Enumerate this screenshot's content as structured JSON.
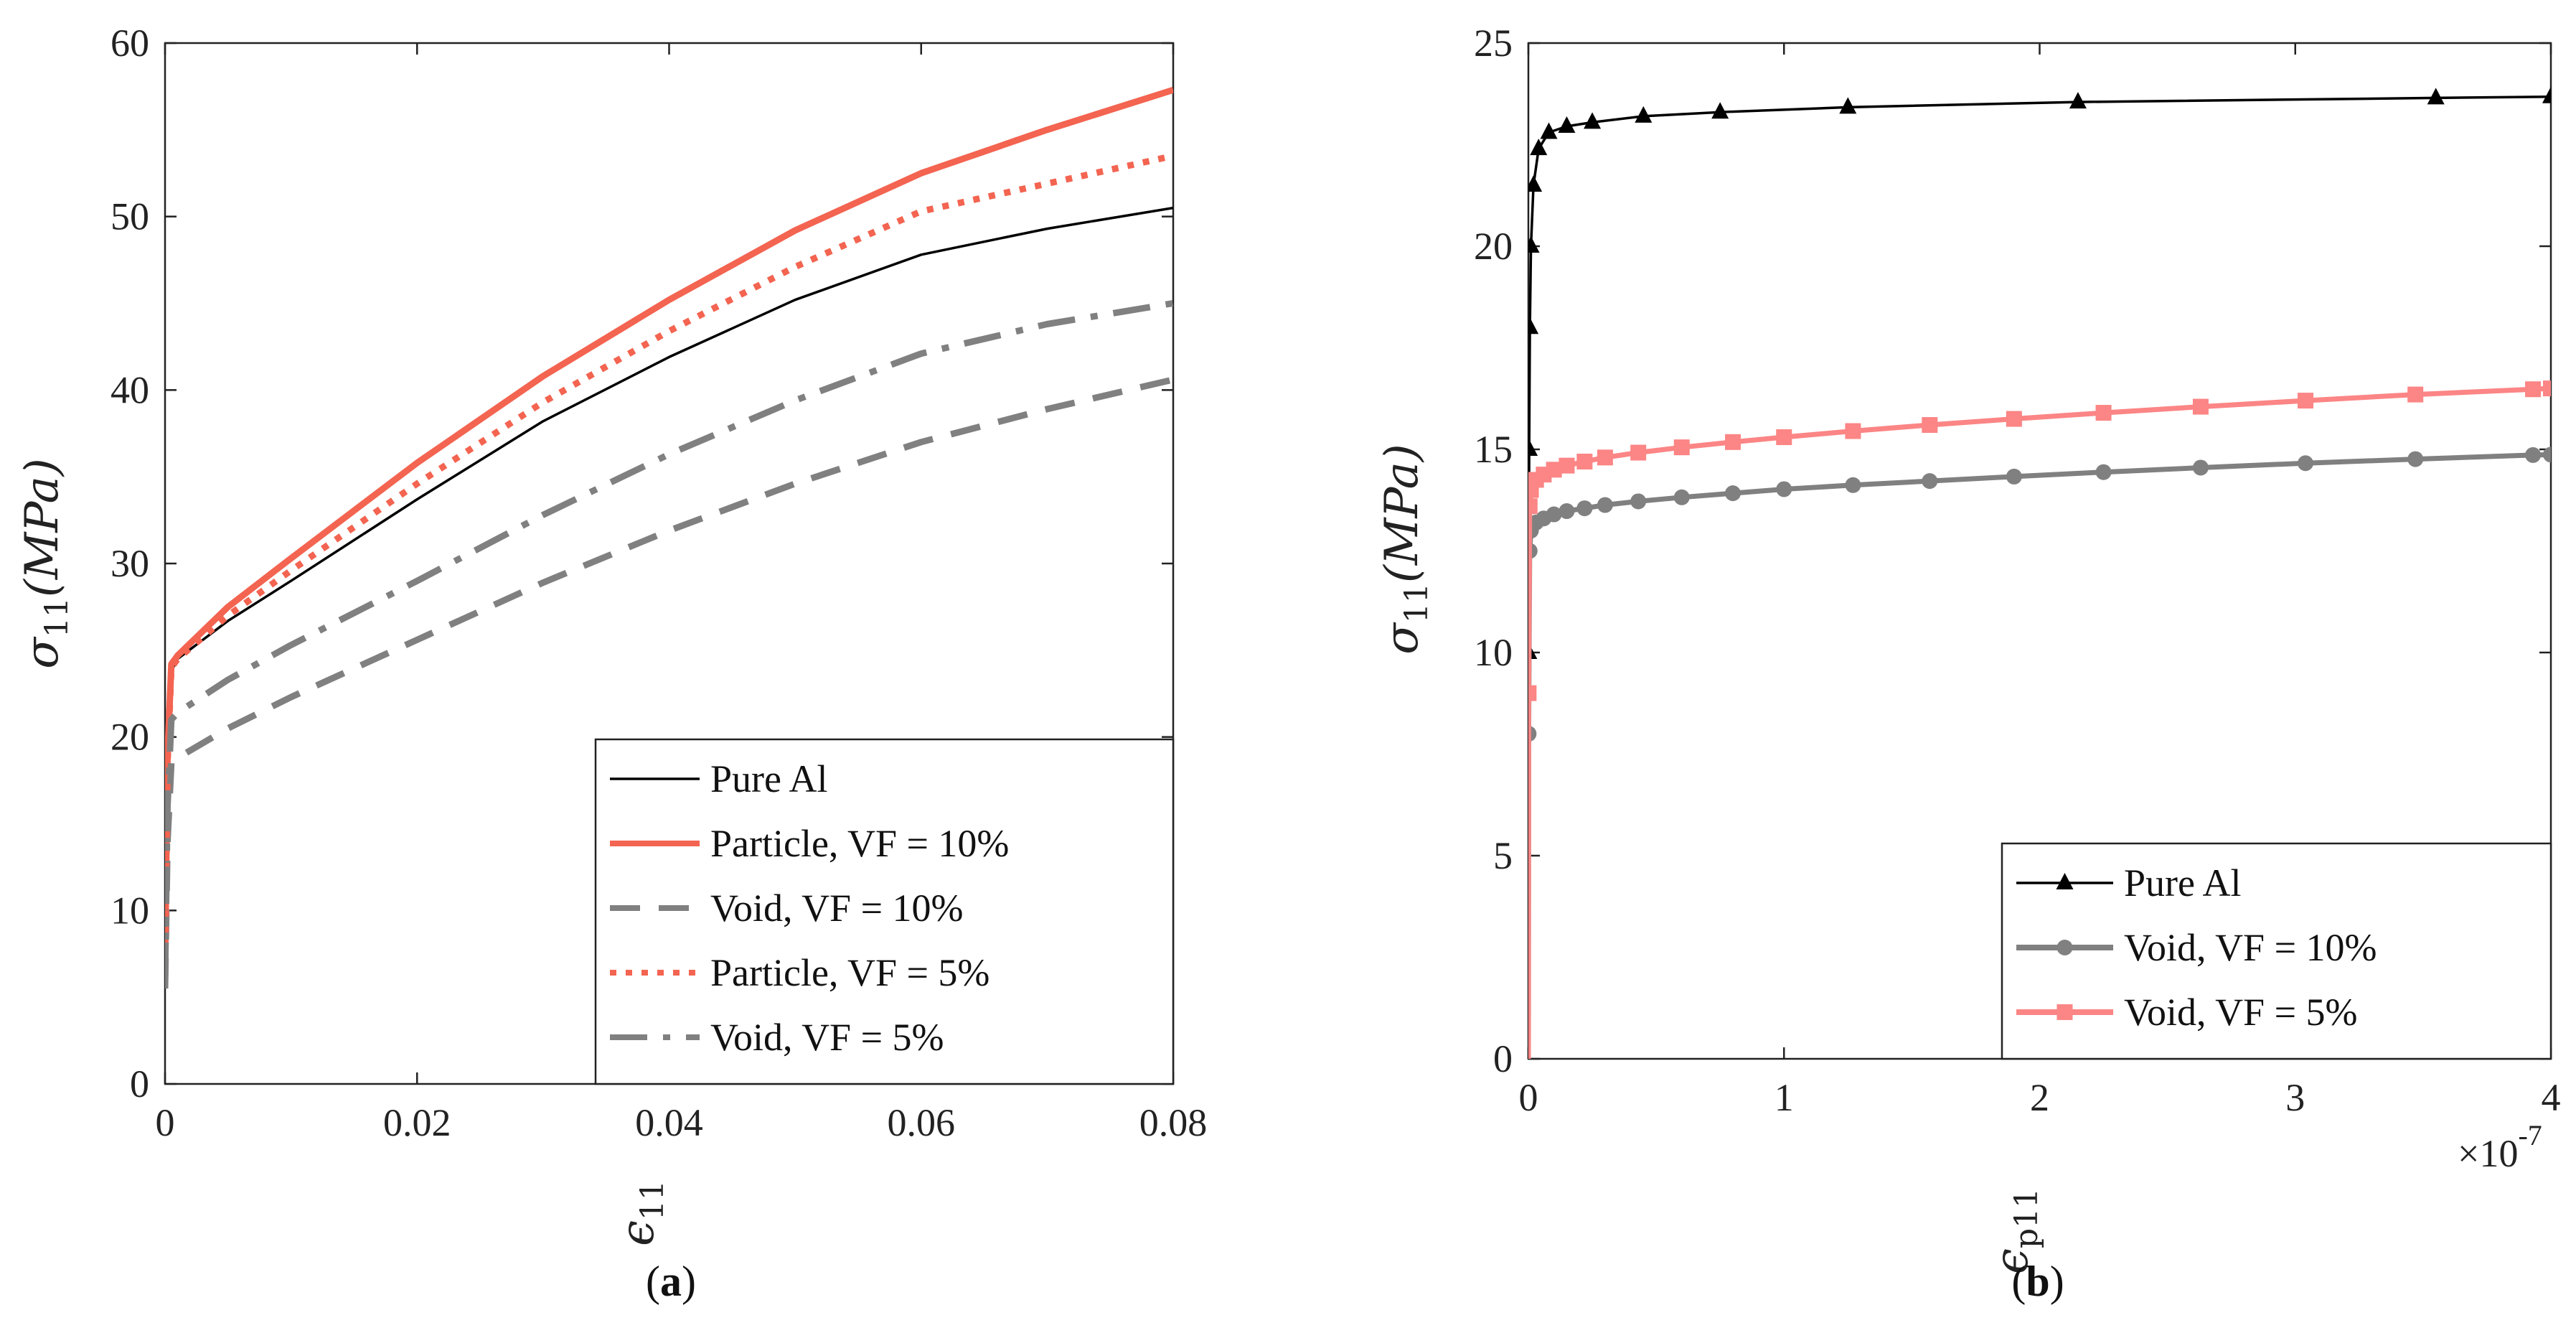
{
  "chart_data": [
    {
      "type": "line",
      "panel": "a",
      "caption": "(a)",
      "xlabel": "ϵ11",
      "ylabel": "σ11(MPa)",
      "xlim": [
        0,
        0.08
      ],
      "ylim": [
        0,
        60
      ],
      "xticks": [
        "0",
        "0.02",
        "0.04",
        "0.06",
        "0.08"
      ],
      "yticks": [
        "0",
        "10",
        "20",
        "30",
        "40",
        "50",
        "60"
      ],
      "legend_position": "bottom-right",
      "series": [
        {
          "name": "Pure Al",
          "color": "#000000",
          "style": "solid",
          "x": [
            0,
            0.0002,
            0.0005,
            0.001,
            0.005,
            0.01,
            0.02,
            0.03,
            0.04,
            0.05,
            0.06,
            0.07,
            0.08
          ],
          "y": [
            5.5,
            18,
            23.8,
            24.5,
            26.7,
            29,
            33.7,
            38.2,
            41.9,
            45.2,
            47.8,
            49.3,
            50.5
          ]
        },
        {
          "name": "Particle, VF = 10%",
          "color": "#f36451",
          "style": "solid",
          "x": [
            0,
            0.0002,
            0.0005,
            0.001,
            0.005,
            0.01,
            0.02,
            0.03,
            0.04,
            0.05,
            0.06,
            0.07,
            0.08
          ],
          "y": [
            6.5,
            19,
            24.2,
            24.7,
            27.5,
            30.3,
            35.8,
            40.8,
            45.2,
            49.2,
            52.5,
            55,
            57.3
          ]
        },
        {
          "name": "Void,     VF = 10%",
          "color": "#808080",
          "style": "dashed",
          "x": [
            0,
            0.0002,
            0.0005,
            0.001,
            0.005,
            0.01,
            0.02,
            0.03,
            0.04,
            0.05,
            0.06,
            0.07,
            0.08
          ],
          "y": [
            5.5,
            14,
            18.5,
            18.8,
            20.5,
            22.3,
            25.6,
            28.9,
            31.9,
            34.6,
            37,
            38.9,
            40.6
          ]
        },
        {
          "name": "Particle, VF = 5%",
          "color": "#f36451",
          "style": "dotted",
          "x": [
            0,
            0.0002,
            0.0005,
            0.001,
            0.005,
            0.01,
            0.02,
            0.03,
            0.04,
            0.05,
            0.06,
            0.07,
            0.08
          ],
          "y": [
            6,
            18.5,
            24,
            24.5,
            27,
            29.6,
            34.6,
            39.3,
            43.4,
            47.1,
            50.3,
            51.9,
            53.5
          ]
        },
        {
          "name": "Void,     VF = 5%",
          "color": "#808080",
          "style": "dashdot",
          "x": [
            0,
            0.0002,
            0.0005,
            0.001,
            0.005,
            0.01,
            0.02,
            0.03,
            0.04,
            0.05,
            0.06,
            0.07,
            0.08
          ],
          "y": [
            6,
            16,
            21,
            21.4,
            23.3,
            25.3,
            29,
            32.8,
            36.3,
            39.4,
            42.1,
            43.8,
            45
          ]
        }
      ]
    },
    {
      "type": "line",
      "panel": "b",
      "caption": "(b)",
      "xlabel": "ϵp11",
      "ylabel": "σ11(MPa)",
      "xlim": [
        0,
        4
      ],
      "ylim": [
        0,
        25
      ],
      "xticks": [
        "0",
        "1",
        "2",
        "3",
        "4"
      ],
      "yticks": [
        "0",
        "5",
        "10",
        "15",
        "20",
        "25"
      ],
      "x_multiplier": "×10",
      "x_multiplier_exp": "-7",
      "legend_position": "bottom-right",
      "series": [
        {
          "name": "Pure Al",
          "color": "#000000",
          "marker": "triangle",
          "x": [
            0,
            0.001,
            0.003,
            0.006,
            0.01,
            0.02,
            0.04,
            0.08,
            0.15,
            0.25,
            0.45,
            0.75,
            1.25,
            2.15,
            3.55,
            4.0
          ],
          "y": [
            0,
            10,
            15,
            18,
            20,
            21.5,
            22.4,
            22.8,
            22.95,
            23.05,
            23.2,
            23.3,
            23.42,
            23.55,
            23.65,
            23.68
          ]
        },
        {
          "name": "Void,     VF = 10%",
          "color": "#808080",
          "marker": "circle",
          "x": [
            0,
            0.001,
            0.005,
            0.01,
            0.03,
            0.06,
            0.1,
            0.15,
            0.22,
            0.3,
            0.43,
            0.6,
            0.8,
            1.0,
            1.27,
            1.57,
            1.9,
            2.25,
            2.63,
            3.04,
            3.47,
            3.93,
            4.0
          ],
          "y": [
            0,
            8,
            12.5,
            13.0,
            13.2,
            13.3,
            13.4,
            13.48,
            13.55,
            13.63,
            13.72,
            13.82,
            13.92,
            14.02,
            14.12,
            14.22,
            14.33,
            14.44,
            14.55,
            14.66,
            14.76,
            14.86,
            14.87
          ]
        },
        {
          "name": "Void,     VF = 5%",
          "color": "#fc8585",
          "marker": "square",
          "x": [
            0,
            0.001,
            0.005,
            0.01,
            0.03,
            0.06,
            0.1,
            0.15,
            0.22,
            0.3,
            0.43,
            0.6,
            0.8,
            1.0,
            1.27,
            1.57,
            1.9,
            2.25,
            2.63,
            3.04,
            3.47,
            3.93,
            4.0
          ],
          "y": [
            0,
            9,
            13.6,
            14.0,
            14.25,
            14.38,
            14.5,
            14.6,
            14.7,
            14.8,
            14.92,
            15.05,
            15.18,
            15.3,
            15.45,
            15.6,
            15.75,
            15.9,
            16.05,
            16.2,
            16.35,
            16.48,
            16.5
          ]
        }
      ]
    }
  ]
}
